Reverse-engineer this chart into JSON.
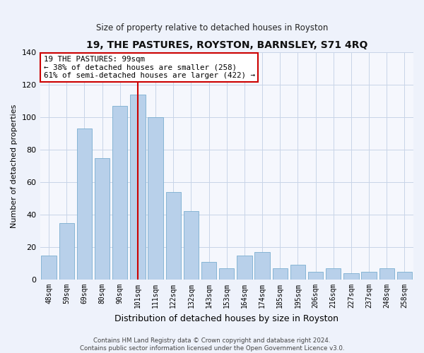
{
  "title": "19, THE PASTURES, ROYSTON, BARNSLEY, S71 4RQ",
  "subtitle": "Size of property relative to detached houses in Royston",
  "xlabel": "Distribution of detached houses by size in Royston",
  "ylabel": "Number of detached properties",
  "categories": [
    "48sqm",
    "59sqm",
    "69sqm",
    "80sqm",
    "90sqm",
    "101sqm",
    "111sqm",
    "122sqm",
    "132sqm",
    "143sqm",
    "153sqm",
    "164sqm",
    "174sqm",
    "185sqm",
    "195sqm",
    "206sqm",
    "216sqm",
    "227sqm",
    "237sqm",
    "248sqm",
    "258sqm"
  ],
  "values": [
    15,
    35,
    93,
    75,
    107,
    114,
    100,
    54,
    42,
    11,
    7,
    15,
    17,
    7,
    9,
    5,
    7,
    4,
    5,
    7,
    5
  ],
  "bar_color": "#b8d0ea",
  "bar_edge_color": "#7aaed0",
  "highlight_index": 5,
  "highlight_line_color": "#cc0000",
  "ylim": [
    0,
    140
  ],
  "yticks": [
    0,
    20,
    40,
    60,
    80,
    100,
    120,
    140
  ],
  "annotation_line1": "19 THE PASTURES: 99sqm",
  "annotation_line2": "← 38% of detached houses are smaller (258)",
  "annotation_line3": "61% of semi-detached houses are larger (422) →",
  "annotation_box_color": "#ffffff",
  "annotation_box_edge_color": "#cc0000",
  "footer_text": "Contains HM Land Registry data © Crown copyright and database right 2024.\nContains public sector information licensed under the Open Government Licence v3.0.",
  "background_color": "#eef2fb",
  "plot_background_color": "#f5f7fd",
  "grid_color": "#c8d4e8"
}
